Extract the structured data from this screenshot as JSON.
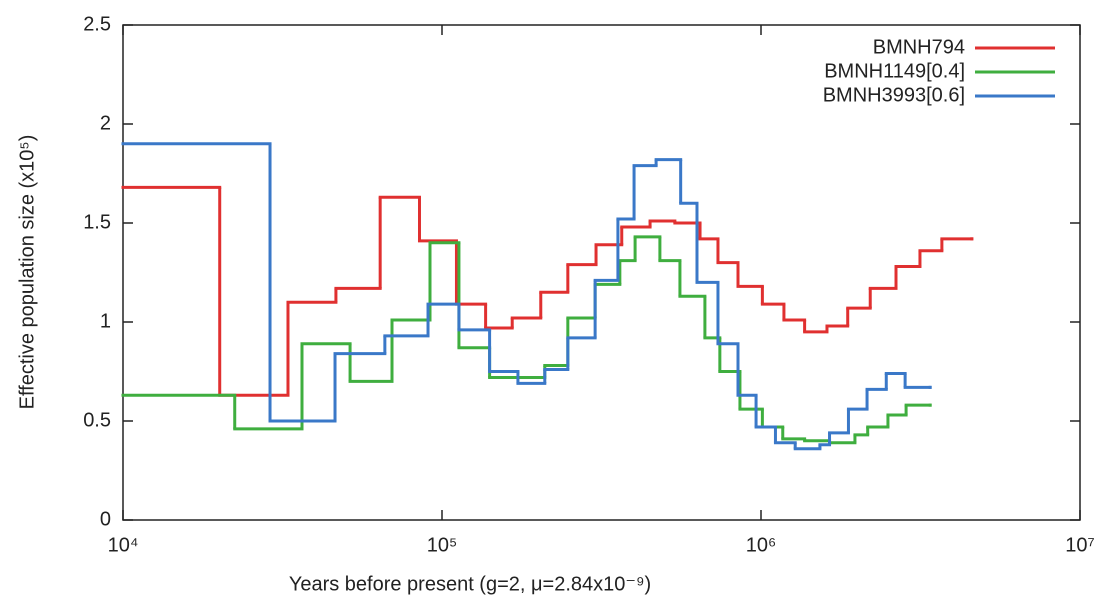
{
  "chart_data": {
    "type": "step",
    "xlabel": "Years before present (g=2, μ=2.84x10⁻⁹)",
    "ylabel": "Effective population size (x10⁵)",
    "xscale": "log",
    "xlim": [
      10000,
      10000000
    ],
    "xticks": [
      {
        "value": 10000,
        "label": "10⁴"
      },
      {
        "value": 100000,
        "label": "10⁵"
      },
      {
        "value": 1000000,
        "label": "10⁶"
      },
      {
        "value": 10000000,
        "label": "10⁷"
      }
    ],
    "ylim": [
      0,
      2.5
    ],
    "yticks": [
      0,
      0.5,
      1,
      1.5,
      2,
      2.5
    ],
    "legend": "upper right",
    "series": [
      {
        "name": "BMNH794",
        "color": "#e03030",
        "x": [
          10000,
          20100,
          32900,
          46500,
          64000,
          85000,
          111000,
          137000,
          166000,
          204000,
          248000,
          304000,
          366000,
          449000,
          537000,
          644000,
          733000,
          847000,
          1010000,
          1180000,
          1370000,
          1610000,
          1870000,
          2200000,
          2650000,
          3150000,
          3690000,
          4580000
        ],
        "values": [
          1.68,
          0.63,
          1.1,
          1.17,
          1.63,
          1.41,
          1.09,
          0.97,
          1.02,
          1.15,
          1.29,
          1.39,
          1.48,
          1.51,
          1.5,
          1.42,
          1.3,
          1.18,
          1.09,
          1.01,
          0.95,
          0.98,
          1.07,
          1.17,
          1.28,
          1.36,
          1.42,
          1.42
        ]
      },
      {
        "name": "BMNH1149[0.4]",
        "color": "#3fae3f",
        "x": [
          10000,
          22400,
          36400,
          51500,
          69700,
          91700,
          113000,
          141000,
          210000,
          248000,
          302000,
          361000,
          403000,
          482000,
          557000,
          667000,
          743000,
          859000,
          1010000,
          1170000,
          1370000,
          1640000,
          1970000,
          2160000,
          2500000,
          2850000,
          3390000
        ],
        "values": [
          0.63,
          0.46,
          0.89,
          0.7,
          1.01,
          1.4,
          0.87,
          0.72,
          0.78,
          1.02,
          1.19,
          1.31,
          1.43,
          1.31,
          1.13,
          0.92,
          0.75,
          0.56,
          0.47,
          0.41,
          0.4,
          0.39,
          0.43,
          0.47,
          0.53,
          0.58,
          0.58
        ]
      },
      {
        "name": "BMNH3993[0.6]",
        "color": "#3a78c8",
        "x": [
          10000,
          28900,
          46200,
          66200,
          90400,
          113000,
          141000,
          173000,
          210000,
          248000,
          302000,
          356000,
          400000,
          469000,
          560000,
          630000,
          733000,
          847000,
          965000,
          1110000,
          1280000,
          1530000,
          1640000,
          1880000,
          2150000,
          2470000,
          2830000,
          3390000
        ],
        "values": [
          1.9,
          0.5,
          0.84,
          0.93,
          1.09,
          0.96,
          0.75,
          0.69,
          0.76,
          0.92,
          1.21,
          1.52,
          1.79,
          1.82,
          1.6,
          1.2,
          0.89,
          0.63,
          0.47,
          0.39,
          0.36,
          0.38,
          0.44,
          0.56,
          0.66,
          0.74,
          0.67,
          0.67
        ]
      }
    ]
  }
}
